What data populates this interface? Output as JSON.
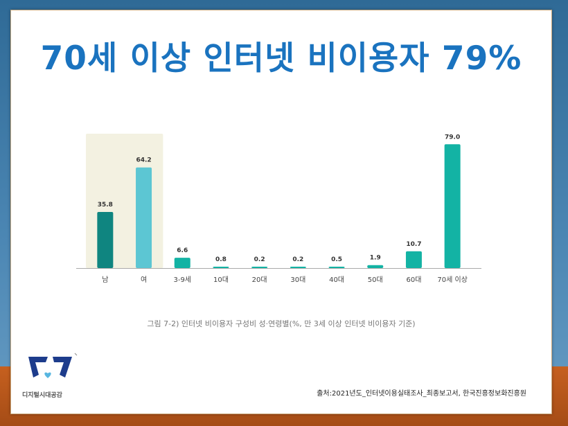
{
  "title": "70세 이상 인터넷 비이용자 79%",
  "caption": "그림 7-2) 인터넷 비이용자 구성비 성·연령별(%, 만 3세 이상 인터넷 비이용자 기준)",
  "source": "출처:2021년도_인터넷이용실태조사_최종보고서,  한국진흥정보화진흥원",
  "logo": {
    "text": "디지털시대공감"
  },
  "colors": {
    "male": "#0f8580",
    "female": "#5cc6d3",
    "age": "#13b3a4",
    "highlight_bg": "#f3f1e1",
    "title": "#1a73bf"
  },
  "chart_data": {
    "type": "bar",
    "categories": [
      "남",
      "여",
      "3-9세",
      "10대",
      "20대",
      "30대",
      "40대",
      "50대",
      "60대",
      "70세 이상"
    ],
    "values": [
      35.8,
      64.2,
      6.6,
      0.8,
      0.2,
      0.2,
      0.5,
      1.9,
      10.7,
      79.0
    ],
    "data_labels": [
      "35.8",
      "64.2",
      "6.6",
      "0.8",
      "0.2",
      "0.2",
      "0.5",
      "1.9",
      "10.7",
      "79.0"
    ],
    "highlighted_group": [
      "남",
      "여"
    ],
    "ylim": [
      0,
      80
    ],
    "grid": false,
    "legend": "none"
  }
}
